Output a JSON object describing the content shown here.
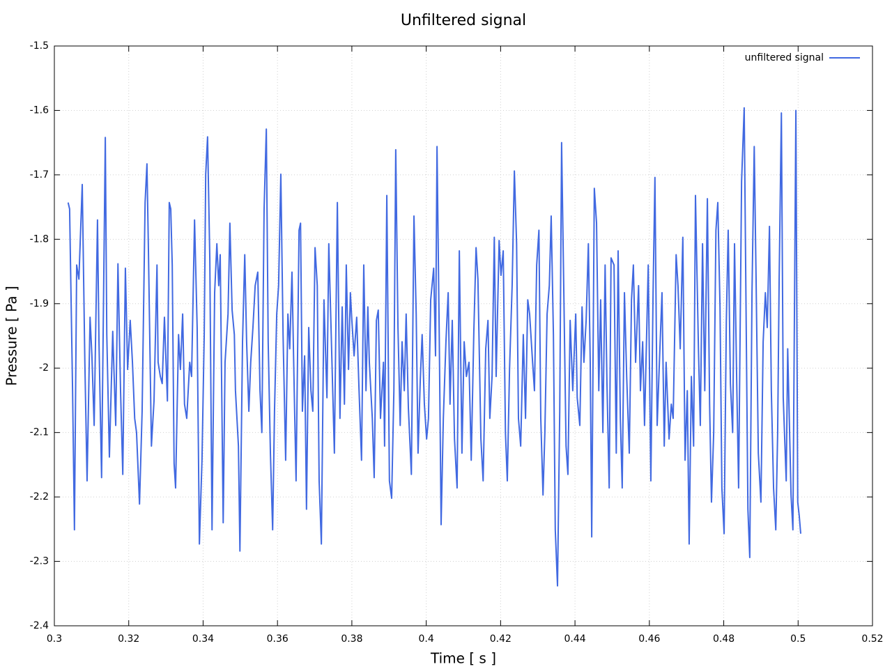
{
  "chart_data": {
    "type": "line",
    "title": "Unfiltered signal",
    "x_label": "Time [ s ]",
    "y_label": "Pressure [ Pa ]",
    "grid": true,
    "legend": "top-right",
    "xlim": [
      0.3,
      0.52
    ],
    "xticks": [
      0.3,
      0.32,
      0.34,
      0.36,
      0.38,
      0.4,
      0.42,
      0.44,
      0.46,
      0.48,
      0.5,
      0.52
    ],
    "ylim": [
      -2.4,
      -1.5
    ],
    "yticks": [
      -1.5,
      -1.6,
      -1.7,
      -1.8,
      -1.9,
      -2,
      -2.1,
      -2.2,
      -2.3,
      -2.4
    ],
    "x": [
      0.3037,
      0.3041,
      0.3049,
      0.3054,
      0.306,
      0.3066,
      0.3075,
      0.3082,
      0.3088,
      0.3096,
      0.3101,
      0.3107,
      0.3116,
      0.312,
      0.3127,
      0.3137,
      0.3141,
      0.3148,
      0.3157,
      0.3165,
      0.3171,
      0.3178,
      0.3184,
      0.3191,
      0.3197,
      0.3204,
      0.321,
      0.3216,
      0.3221,
      0.3229,
      0.3236,
      0.3244,
      0.3249,
      0.3253,
      0.3261,
      0.3268,
      0.3276,
      0.3279,
      0.3285,
      0.329,
      0.3296,
      0.3304,
      0.3309,
      0.3313,
      0.3317,
      0.3322,
      0.3326,
      0.3334,
      0.3339,
      0.3345,
      0.335,
      0.3356,
      0.3364,
      0.3369,
      0.3377,
      0.3384,
      0.339,
      0.3397,
      0.3403,
      0.3407,
      0.3412,
      0.3418,
      0.3424,
      0.3431,
      0.3437,
      0.3442,
      0.3446,
      0.3454,
      0.3459,
      0.3467,
      0.3472,
      0.3478,
      0.3484,
      0.3487,
      0.3495,
      0.3499,
      0.3506,
      0.3512,
      0.3517,
      0.3523,
      0.3528,
      0.3534,
      0.354,
      0.3547,
      0.3553,
      0.3558,
      0.3564,
      0.357,
      0.3575,
      0.3581,
      0.3587,
      0.3592,
      0.3598,
      0.3603,
      0.3609,
      0.3615,
      0.3622,
      0.3628,
      0.3633,
      0.3639,
      0.3645,
      0.365,
      0.3658,
      0.3662,
      0.3667,
      0.3673,
      0.3678,
      0.3684,
      0.369,
      0.3695,
      0.3701,
      0.3707,
      0.3712,
      0.3718,
      0.3725,
      0.3733,
      0.3738,
      0.3744,
      0.3753,
      0.3761,
      0.3768,
      0.3774,
      0.378,
      0.3785,
      0.3791,
      0.3796,
      0.38,
      0.3806,
      0.3813,
      0.3819,
      0.3826,
      0.3832,
      0.3838,
      0.3843,
      0.3847,
      0.3855,
      0.386,
      0.3866,
      0.3871,
      0.3877,
      0.3885,
      0.3888,
      0.3894,
      0.3901,
      0.3907,
      0.3913,
      0.3918,
      0.3924,
      0.393,
      0.3935,
      0.3941,
      0.3946,
      0.3952,
      0.396,
      0.3967,
      0.3973,
      0.3978,
      0.3984,
      0.3989,
      0.3995,
      0.4001,
      0.4006,
      0.4012,
      0.402,
      0.4025,
      0.4029,
      0.4035,
      0.404,
      0.4046,
      0.4053,
      0.4059,
      0.4064,
      0.407,
      0.4076,
      0.4083,
      0.4089,
      0.4096,
      0.4102,
      0.4108,
      0.4115,
      0.4121,
      0.4128,
      0.4134,
      0.4139,
      0.4147,
      0.4153,
      0.416,
      0.4166,
      0.4171,
      0.4177,
      0.4183,
      0.4188,
      0.4196,
      0.4201,
      0.4207,
      0.4213,
      0.4218,
      0.4224,
      0.4231,
      0.4237,
      0.4243,
      0.4248,
      0.4254,
      0.4261,
      0.4267,
      0.4273,
      0.4278,
      0.4286,
      0.4291,
      0.4297,
      0.4303,
      0.4308,
      0.4314,
      0.4319,
      0.4325,
      0.4331,
      0.4336,
      0.4342,
      0.4347,
      0.4353,
      0.4359,
      0.4364,
      0.437,
      0.4376,
      0.4381,
      0.4387,
      0.4394,
      0.4402,
      0.4406,
      0.4413,
      0.4419,
      0.4424,
      0.443,
      0.4436,
      0.4441,
      0.4445,
      0.4452,
      0.4458,
      0.4464,
      0.4469,
      0.4475,
      0.4481,
      0.4486,
      0.4492,
      0.4497,
      0.4505,
      0.4511,
      0.4516,
      0.4522,
      0.4527,
      0.4533,
      0.4539,
      0.4546,
      0.4552,
      0.4557,
      0.4563,
      0.4571,
      0.4576,
      0.4582,
      0.4587,
      0.4597,
      0.4604,
      0.461,
      0.4615,
      0.4621,
      0.4627,
      0.4634,
      0.464,
      0.4645,
      0.4653,
      0.4659,
      0.4664,
      0.4672,
      0.4677,
      0.4683,
      0.469,
      0.4696,
      0.4702,
      0.4707,
      0.4713,
      0.4719,
      0.4724,
      0.4732,
      0.4737,
      0.4743,
      0.4749,
      0.4756,
      0.4762,
      0.4767,
      0.4773,
      0.4779,
      0.4784,
      0.479,
      0.4795,
      0.4801,
      0.4807,
      0.4812,
      0.4818,
      0.4824,
      0.4829,
      0.4835,
      0.484,
      0.4848,
      0.4855,
      0.4861,
      0.4865,
      0.487,
      0.4876,
      0.4882,
      0.4887,
      0.4893,
      0.49,
      0.4906,
      0.4912,
      0.4917,
      0.4923,
      0.4928,
      0.4934,
      0.494,
      0.4945,
      0.4949,
      0.4955,
      0.496,
      0.4968,
      0.4972,
      0.4975,
      0.4981,
      0.4986,
      0.4994,
      0.4999,
      0.5003,
      0.5007
    ],
    "series": [
      {
        "name": "unfiltered signal",
        "color": "#4169e1",
        "values": [
          -1.743,
          -1.753,
          -2.035,
          -2.251,
          -1.84,
          -1.862,
          -1.715,
          -1.991,
          -2.175,
          -1.921,
          -1.981,
          -2.089,
          -1.77,
          -1.959,
          -2.17,
          -1.642,
          -1.948,
          -2.138,
          -1.943,
          -2.089,
          -1.838,
          -2.035,
          -2.165,
          -1.845,
          -2.002,
          -1.926,
          -1.991,
          -2.078,
          -2.1,
          -2.211,
          -2.067,
          -1.743,
          -1.683,
          -1.818,
          -2.121,
          -2.051,
          -1.84,
          -1.991,
          -2.013,
          -2.024,
          -1.921,
          -2.051,
          -1.743,
          -1.753,
          -1.84,
          -2.148,
          -2.186,
          -1.948,
          -2.002,
          -1.916,
          -2.056,
          -2.078,
          -1.991,
          -2.013,
          -1.77,
          -1.937,
          -2.273,
          -2.143,
          -1.948,
          -1.699,
          -1.641,
          -1.829,
          -2.251,
          -1.883,
          -1.807,
          -1.872,
          -1.824,
          -2.24,
          -1.991,
          -1.916,
          -1.775,
          -1.91,
          -1.948,
          -2.035,
          -2.121,
          -2.284,
          -1.959,
          -1.824,
          -1.959,
          -2.067,
          -1.991,
          -1.937,
          -1.872,
          -1.851,
          -2.035,
          -2.1,
          -1.753,
          -1.629,
          -1.959,
          -2.132,
          -2.251,
          -2.067,
          -1.916,
          -1.872,
          -1.699,
          -1.948,
          -2.143,
          -1.916,
          -1.97,
          -1.851,
          -2.035,
          -2.175,
          -1.786,
          -1.775,
          -2.067,
          -1.981,
          -2.219,
          -1.937,
          -2.035,
          -2.067,
          -1.813,
          -1.872,
          -2.175,
          -2.273,
          -1.894,
          -2.046,
          -1.807,
          -1.937,
          -2.132,
          -1.743,
          -2.078,
          -1.905,
          -2.056,
          -1.84,
          -2.002,
          -1.883,
          -1.926,
          -1.981,
          -1.921,
          -2.029,
          -2.143,
          -1.84,
          -2.035,
          -1.905,
          -1.991,
          -2.078,
          -2.17,
          -1.926,
          -1.91,
          -2.078,
          -1.991,
          -2.121,
          -1.732,
          -2.175,
          -2.202,
          -2.035,
          -1.661,
          -1.937,
          -2.089,
          -1.959,
          -2.035,
          -1.916,
          -2.062,
          -2.165,
          -1.764,
          -1.916,
          -2.132,
          -2.018,
          -1.948,
          -2.056,
          -2.11,
          -2.078,
          -1.894,
          -1.845,
          -1.981,
          -1.656,
          -1.948,
          -2.243,
          -2.078,
          -1.959,
          -1.883,
          -2.056,
          -1.926,
          -2.11,
          -2.186,
          -1.818,
          -2.132,
          -1.959,
          -2.013,
          -1.991,
          -2.143,
          -1.943,
          -1.813,
          -1.862,
          -2.11,
          -2.175,
          -1.97,
          -1.926,
          -2.078,
          -2.013,
          -1.797,
          -2.013,
          -1.802,
          -1.856,
          -1.818,
          -2.1,
          -2.175,
          -2.002,
          -1.872,
          -1.694,
          -1.807,
          -2.078,
          -2.121,
          -1.948,
          -2.078,
          -1.894,
          -1.916,
          -1.991,
          -2.035,
          -1.84,
          -1.786,
          -2.078,
          -2.197,
          -2.1,
          -1.916,
          -1.872,
          -1.764,
          -1.948,
          -2.251,
          -2.338,
          -2.067,
          -1.65,
          -1.883,
          -2.121,
          -2.165,
          -1.926,
          -2.035,
          -1.916,
          -2.046,
          -2.089,
          -1.905,
          -1.991,
          -1.926,
          -1.807,
          -1.991,
          -2.262,
          -1.721,
          -1.775,
          -2.035,
          -1.894,
          -2.1,
          -1.84,
          -2.024,
          -2.186,
          -1.829,
          -1.84,
          -2.132,
          -1.818,
          -2.078,
          -2.186,
          -1.883,
          -2.013,
          -2.132,
          -1.894,
          -1.84,
          -1.991,
          -1.872,
          -2.035,
          -1.959,
          -2.089,
          -1.84,
          -2.175,
          -1.883,
          -1.704,
          -2.089,
          -1.991,
          -1.883,
          -2.121,
          -1.991,
          -2.11,
          -2.056,
          -2.078,
          -1.824,
          -1.872,
          -1.97,
          -1.797,
          -2.143,
          -2.035,
          -2.273,
          -2.013,
          -2.121,
          -1.732,
          -1.97,
          -2.089,
          -1.807,
          -2.035,
          -1.737,
          -2.056,
          -2.208,
          -2.1,
          -1.786,
          -1.743,
          -1.905,
          -2.186,
          -2.257,
          -1.926,
          -1.786,
          -2.024,
          -2.1,
          -1.807,
          -2.024,
          -2.186,
          -1.71,
          -1.596,
          -1.97,
          -2.219,
          -2.294,
          -1.883,
          -1.656,
          -1.862,
          -2.132,
          -2.208,
          -1.959,
          -1.883,
          -1.937,
          -1.78,
          -2.035,
          -2.186,
          -2.251,
          -2.1,
          -1.862,
          -1.604,
          -2.046,
          -2.175,
          -1.97,
          -2.046,
          -2.197,
          -2.251,
          -1.6,
          -2.208,
          -2.229,
          -2.257
        ]
      }
    ]
  }
}
